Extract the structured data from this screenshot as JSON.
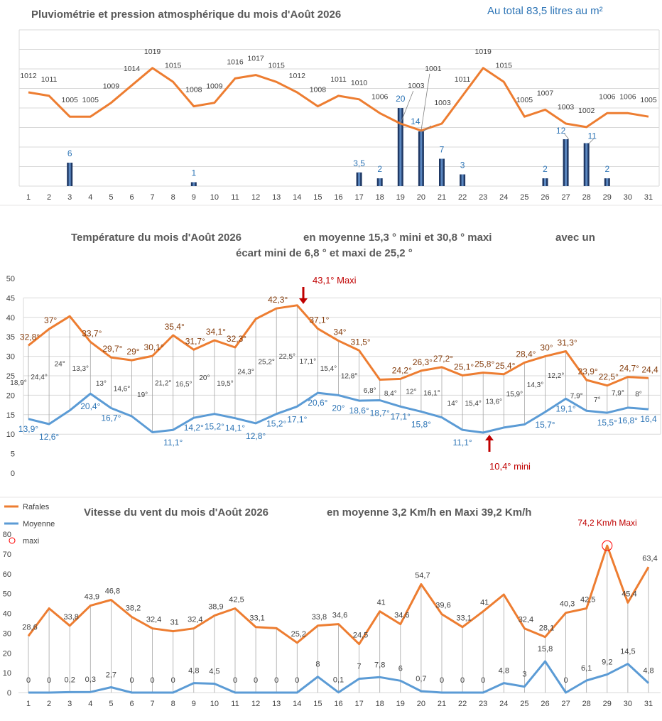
{
  "colors": {
    "orange": "#ED7D31",
    "blue": "#5B9BD5",
    "bar_dark": "#1F3864",
    "bar_light": "#5B87C0",
    "blue_label": "#2E75B6",
    "brown_label": "#843C0C",
    "red": "#C00000",
    "text": "#595959",
    "grid": "#D9D9D9"
  },
  "chart_data": [
    {
      "type": "bar+line",
      "title": "Pluviométrie et pression atmosphérique du mois d'Août 2026",
      "annotation_total": "Au total  83,5  litres au m²",
      "days": [
        "1",
        "2",
        "3",
        "4",
        "5",
        "6",
        "7",
        "8",
        "9",
        "10",
        "11",
        "12",
        "13",
        "14",
        "15",
        "16",
        "17",
        "18",
        "19",
        "20",
        "21",
        "22",
        "23",
        "24",
        "25",
        "26",
        "27",
        "28",
        "29",
        "30",
        "31"
      ],
      "series": [
        {
          "name": "Pression",
          "values": [
            1012,
            1011,
            1005,
            1005,
            1009,
            1014,
            1019,
            1015,
            1008,
            1009,
            1016,
            1017,
            1015,
            1012,
            1008,
            1011,
            1010,
            1006,
            1003,
            1001,
            1003,
            1011,
            1019,
            1015,
            1005,
            1007,
            1003,
            1002,
            1006,
            1006,
            1005
          ]
        },
        {
          "name": "Pluie",
          "values": [
            0,
            0,
            6,
            0,
            0,
            0,
            0,
            0,
            1,
            0,
            0,
            0,
            0,
            0,
            0,
            0,
            3.5,
            2,
            20,
            14,
            7,
            3,
            0,
            0,
            0,
            2,
            12,
            11,
            2,
            0,
            0
          ]
        }
      ],
      "rain_labels": [
        "",
        "",
        "6",
        "",
        "",
        "",
        "",
        "",
        "1",
        "",
        "",
        "",
        "",
        "",
        "",
        "",
        "3,5",
        "2",
        "20",
        "14",
        "7",
        "3",
        "",
        "",
        "",
        "2",
        "12",
        "11",
        "2",
        "",
        ""
      ],
      "rain_axis_max": 40,
      "pressure_axis": [
        985,
        1030
      ]
    },
    {
      "type": "line",
      "title": "Température du mois d'Août 2026",
      "subtitle1": "en moyenne 15,3 °  mini  et  30,8 °  maxi",
      "subtitle2": "avec un",
      "subtitle3": "écart mini de 6,8 ° et maxi de  25,2 °",
      "days": [
        "1",
        "2",
        "3",
        "4",
        "5",
        "6",
        "7",
        "8",
        "9",
        "10",
        "11",
        "12",
        "13",
        "14",
        "15",
        "16",
        "17",
        "18",
        "19",
        "20",
        "21",
        "22",
        "23",
        "24",
        "25",
        "26",
        "27",
        "28",
        "29",
        "30",
        "31"
      ],
      "series": [
        {
          "name": "Maxi",
          "values": [
            32.8,
            37,
            40.3,
            33.7,
            29.7,
            29,
            30.1,
            35.4,
            31.7,
            34.1,
            32.3,
            39.6,
            42.3,
            43.1,
            37.1,
            34,
            31.5,
            24,
            24.2,
            26.3,
            27.2,
            25.1,
            25.8,
            25.4,
            28.4,
            30,
            31.3,
            23.9,
            22.5,
            24.7,
            24.4
          ]
        },
        {
          "name": "Mini",
          "values": [
            13.9,
            12.6,
            16.1,
            20.4,
            16.7,
            14.6,
            10.5,
            11.1,
            14.2,
            15.2,
            14.1,
            12.8,
            15.2,
            17.1,
            20.6,
            20,
            18.6,
            18.7,
            17.1,
            15.8,
            14.3,
            11.1,
            10.4,
            11.7,
            12.5,
            15.7,
            19.1,
            16,
            15.5,
            16.8,
            16.4
          ]
        }
      ],
      "max_labels": [
        "32,8°",
        "37°",
        "",
        "33,7°",
        "29,7°",
        "29°",
        "30,1°",
        "35,4°",
        "31,7°",
        "34,1°",
        "32,3°",
        "",
        "42,3°",
        "",
        "37,1°",
        "34°",
        "31,5°",
        "",
        "24,2°",
        "26,3°",
        "27,2°",
        "25,1°",
        "25,8°",
        "25,4°",
        "28,4°",
        "30°",
        "31,3°",
        "23,9°",
        "22,5°",
        "24,7°",
        "24,4"
      ],
      "min_labels": [
        "13,9°",
        "12,6°",
        "",
        "20,4°",
        "16,7°",
        "",
        "",
        "11,1°",
        "14,2°",
        "15,2°",
        "14,1°",
        "12,8°",
        "15,2°",
        "17,1°",
        "20,6°",
        "20°",
        "18,6°",
        "18,7°",
        "17,1°",
        "15,8°",
        "",
        "11,1°",
        "",
        "",
        "",
        "15,7°",
        "19,1°",
        "",
        "15,5°",
        "16,8°",
        "16,4"
      ],
      "ecart_labels": [
        "18,9°",
        "24,4°",
        "24°",
        "13,3°",
        "13°",
        "14,6°",
        "19°",
        "21,2°",
        "16,5°",
        "20°",
        "19,5°",
        "24,3°",
        "25,2°",
        "22,5°",
        "17,1°",
        "15,4°",
        "12,8°",
        "6,8°",
        "8,4°",
        "12°",
        "16,1°",
        "14°",
        "15,4°",
        "13,6°",
        "15,9°",
        "14,3°",
        "12,2°",
        "7,9°",
        "7°",
        "7,9°",
        "8°"
      ],
      "annotation_max": "43,1° Maxi",
      "annotation_min": "10,4° mini",
      "yticks": [
        "0",
        "5",
        "10",
        "15",
        "20",
        "25",
        "30",
        "35",
        "40",
        "45",
        "50"
      ],
      "ylim": [
        0,
        50
      ]
    },
    {
      "type": "line",
      "title": "Vitesse du vent du mois d'Août  2026",
      "subtitle": "en moyenne    3,2   Km/h en Maxi  39,2   Km/h",
      "legend": [
        "Rafales",
        "Moyenne",
        "maxi"
      ],
      "days": [
        "1",
        "2",
        "3",
        "4",
        "5",
        "6",
        "7",
        "8",
        "9",
        "10",
        "11",
        "12",
        "13",
        "14",
        "15",
        "16",
        "17",
        "18",
        "19",
        "20",
        "21",
        "22",
        "23",
        "24",
        "25",
        "26",
        "27",
        "28",
        "29",
        "30",
        "31"
      ],
      "series": [
        {
          "name": "Rafales",
          "values": [
            28.6,
            42.5,
            33.8,
            43.9,
            46.8,
            38.2,
            32.4,
            31,
            32.4,
            38.9,
            42.5,
            33.1,
            32.5,
            25.2,
            33.8,
            34.6,
            24.5,
            41,
            34.6,
            54.7,
            39.6,
            33.1,
            41,
            49.5,
            32.4,
            28.1,
            40.3,
            42.5,
            74.2,
            45.4,
            63.4
          ]
        },
        {
          "name": "Moyenne",
          "values": [
            0,
            0,
            0.2,
            0.3,
            2.7,
            0,
            0,
            0,
            4.8,
            4.5,
            0,
            0,
            0,
            0,
            8,
            0.1,
            7,
            7.8,
            6,
            0.7,
            0,
            0,
            0,
            4.8,
            3,
            15.8,
            0,
            6.1,
            9.2,
            14.5,
            4.8
          ]
        }
      ],
      "gust_labels": [
        "28,6",
        "",
        "33,8",
        "43,9",
        "46,8",
        "38,2",
        "32,4",
        "31",
        "32,4",
        "38,9",
        "42,5",
        "33,1",
        "",
        "25,2",
        "33,8",
        "34,6",
        "24,5",
        "41",
        "34,6",
        "54,7",
        "39,6",
        "33,1",
        "41",
        "",
        "32,4",
        "28,1",
        "40,3",
        "42,5",
        "",
        "45,4",
        "63,4"
      ],
      "avg_labels": [
        "0",
        "0",
        "0,2",
        "0,3",
        "2,7",
        "0",
        "0",
        "0",
        "4,8",
        "4,5",
        "0",
        "0",
        "0",
        "0",
        "8",
        "0,1",
        "7",
        "7,8",
        "6",
        "0,7",
        "0",
        "0",
        "0",
        "4,8",
        "3",
        "15,8",
        "0",
        "6,1",
        "9,2",
        "14,5",
        "4,8"
      ],
      "annotation_max": "74,2 Km/h Maxi",
      "yticks": [
        "0",
        "10",
        "20",
        "30",
        "40",
        "50",
        "60",
        "70",
        "80"
      ],
      "ylim": [
        0,
        80
      ]
    }
  ]
}
